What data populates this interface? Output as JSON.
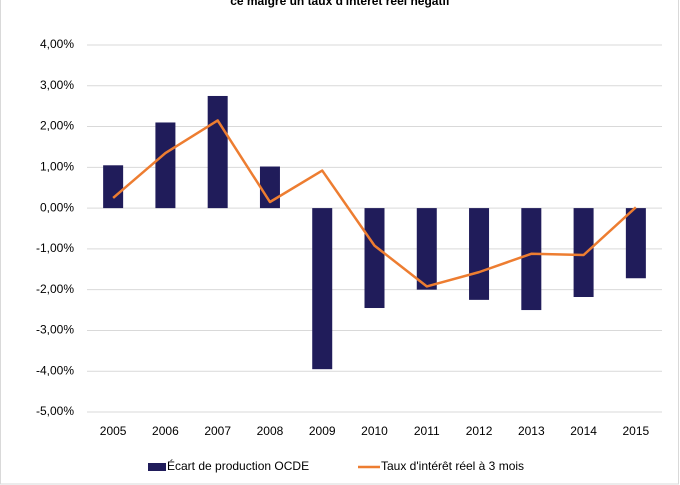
{
  "chart_data": {
    "type": "combo",
    "title": "ce malgré un taux d'intérêt réel négatif",
    "categories": [
      "2005",
      "2006",
      "2007",
      "2008",
      "2009",
      "2010",
      "2011",
      "2012",
      "2013",
      "2014",
      "2015"
    ],
    "series": [
      {
        "name": "Écart de production OCDE",
        "type": "bar",
        "color": "#201c5a",
        "values": [
          1.05,
          2.1,
          2.75,
          1.02,
          -3.95,
          -2.45,
          -2.0,
          -2.25,
          -2.5,
          -2.18,
          -1.72
        ]
      },
      {
        "name": "Taux d'intérêt réel à 3 mois",
        "type": "line",
        "color": "#ed7d31",
        "values": [
          0.25,
          1.35,
          2.15,
          0.15,
          0.92,
          -0.92,
          -1.92,
          -1.57,
          -1.12,
          -1.15,
          0.02
        ]
      }
    ],
    "ylim": [
      -5,
      4
    ],
    "yticks": [
      {
        "value": -5,
        "label": "-5,00%"
      },
      {
        "value": -4,
        "label": "-4,00%"
      },
      {
        "value": -3,
        "label": "-3,00%"
      },
      {
        "value": -2,
        "label": "-2,00%"
      },
      {
        "value": -1,
        "label": "-1,00%"
      },
      {
        "value": 0,
        "label": "0,00%"
      },
      {
        "value": 1,
        "label": "1,00%"
      },
      {
        "value": 2,
        "label": "2,00%"
      },
      {
        "value": 3,
        "label": "3,00%"
      },
      {
        "value": 4,
        "label": "4,00%"
      }
    ],
    "grid": true,
    "legend": "bottom"
  }
}
